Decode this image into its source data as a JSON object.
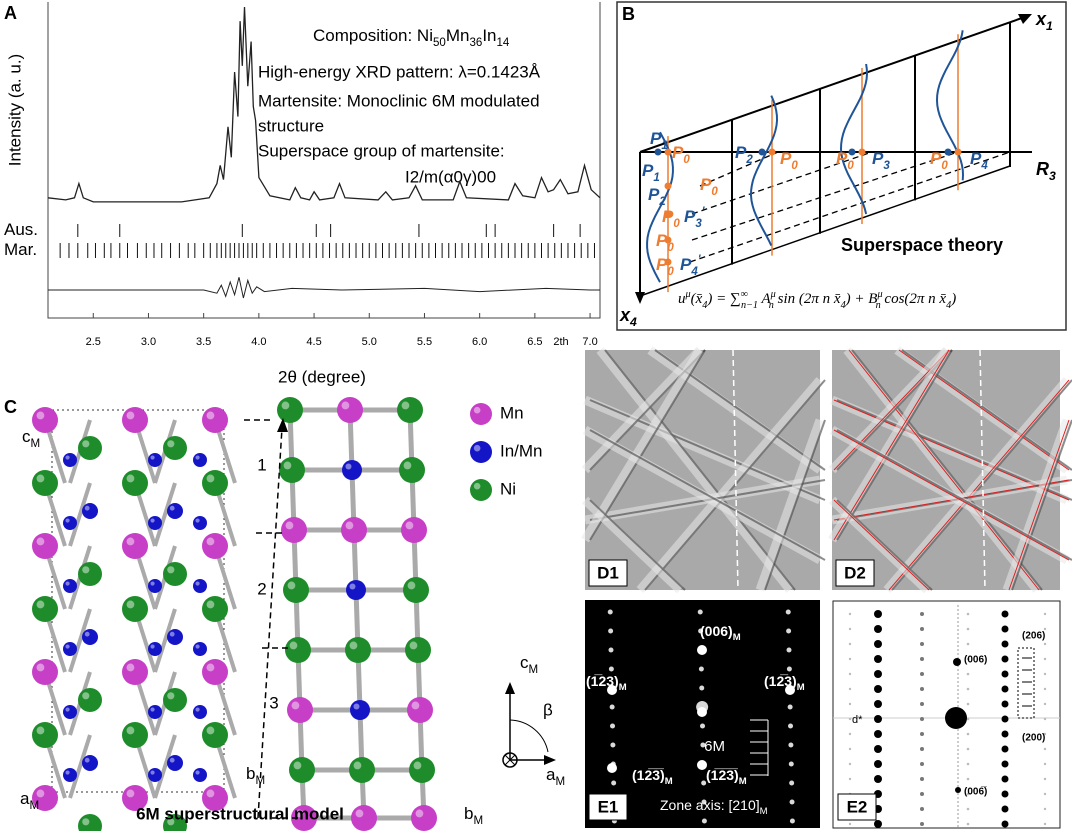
{
  "chart_data": {
    "type": "line",
    "panel_label": "A",
    "y_label": "Intensity (a. u.)",
    "x_label": "2θ (degree)",
    "x_unit_label": "2th",
    "composition": [
      "Composition:  Ni",
      "50",
      "Mn",
      "36",
      "In",
      "14"
    ],
    "annotations": [
      "High-energy XRD pattern: λ=0.1423Å",
      "Martensite: Monoclinic 6M modulated",
      "structure",
      "Superspace group of martensite:",
      "I2/m(α0γ)00"
    ],
    "xlim": [
      2.09,
      7.09
    ],
    "xticks": [
      2.5,
      {
        "value": 3,
        "label": "3.0"
      },
      3.5,
      {
        "value": 4,
        "label": "4.0"
      },
      4.5,
      {
        "value": 5,
        "label": "5.0"
      },
      5.5,
      {
        "value": 6,
        "label": "6.0"
      },
      6.5,
      {
        "value": 7,
        "label": "7.0"
      }
    ],
    "ylim": [
      0,
      100
    ],
    "x": [
      2.09,
      2.25,
      2.33,
      2.37,
      2.41,
      2.5,
      2.9,
      3.3,
      3.55,
      3.62,
      3.65,
      3.68,
      3.72,
      3.75,
      3.78,
      3.81,
      3.83,
      3.85,
      3.87,
      3.9,
      3.93,
      3.95,
      3.97,
      4.0,
      4.1,
      4.28,
      4.33,
      4.38,
      4.46,
      4.5,
      4.55,
      4.68,
      4.73,
      4.78,
      5.08,
      5.15,
      5.21,
      5.36,
      5.42,
      5.48,
      5.76,
      5.82,
      5.88,
      6.26,
      6.32,
      6.39,
      6.5,
      6.56,
      6.62,
      6.67,
      6.73,
      6.8,
      6.89,
      6.95,
      7.01,
      7.09
    ],
    "series": [
      {
        "color": "#222222",
        "values": [
          5,
          4,
          5,
          12,
          5,
          3,
          3,
          3,
          5,
          12,
          21,
          14,
          40,
          25,
          67,
          45,
          92,
          70,
          99,
          60,
          82,
          50,
          43,
          15,
          6,
          4,
          10,
          5,
          4,
          8,
          4,
          5,
          12,
          5,
          4,
          8,
          4,
          5,
          11,
          4,
          4,
          13,
          5,
          4,
          12,
          6,
          5,
          15,
          8,
          9,
          14,
          7,
          8,
          21,
          9,
          5
        ]
      }
    ],
    "reflections": [
      {
        "name": "Aus.",
        "positions": [
          2.36,
          2.74,
          3.85,
          4.52,
          4.65,
          5.45,
          6.06,
          6.14,
          6.67,
          6.91
        ]
      },
      {
        "name": "Mar.",
        "positions": [
          2.2,
          2.28,
          2.36,
          2.45,
          2.52,
          2.6,
          2.66,
          2.74,
          2.81,
          2.9,
          2.98,
          3.05,
          3.12,
          3.2,
          3.28,
          3.36,
          3.42,
          3.5,
          3.56,
          3.62,
          3.66,
          3.7,
          3.74,
          3.78,
          3.82,
          3.86,
          3.9,
          3.94,
          3.98,
          4.04,
          4.1,
          4.16,
          4.22,
          4.28,
          4.34,
          4.4,
          4.46,
          4.52,
          4.58,
          4.64,
          4.7,
          4.76,
          4.82,
          4.88,
          4.94,
          5.0,
          5.06,
          5.12,
          5.18,
          5.24,
          5.3,
          5.36,
          5.42,
          5.48,
          5.54,
          5.6,
          5.66,
          5.72,
          5.78,
          5.84,
          5.9,
          5.96,
          6.02,
          6.08,
          6.14,
          6.2,
          6.26,
          6.32,
          6.38,
          6.44,
          6.5,
          6.56,
          6.62,
          6.68,
          6.74,
          6.8,
          6.86,
          6.92,
          6.98,
          7.04
        ]
      }
    ],
    "difference": {
      "ylim": [
        -10,
        10
      ],
      "x": [
        2.09,
        3.5,
        3.62,
        3.66,
        3.7,
        3.74,
        3.78,
        3.82,
        3.86,
        3.9,
        3.94,
        3.98,
        4.05,
        4.3,
        4.75,
        5.5,
        6.0,
        6.6,
        7.0,
        7.09
      ],
      "values": [
        0,
        0,
        -2,
        3,
        -4,
        5,
        -3,
        8,
        -5,
        6,
        -2,
        2,
        -1,
        1,
        0,
        1,
        -1,
        1,
        0,
        0
      ]
    }
  },
  "panel_b": {
    "label": "B",
    "axis_x1": [
      "x",
      "1"
    ],
    "axis_r3": [
      "R",
      "3"
    ],
    "axis_x4": [
      "x",
      "4"
    ],
    "title": "Superspace theory",
    "points": [
      {
        "text": [
          "P",
          "1"
        ],
        "color": "#1f5597"
      },
      {
        "text": [
          "P",
          "0"
        ],
        "color": "#ed7d31"
      },
      {
        "text": [
          "P",
          "2"
        ],
        "color": "#1f5597"
      },
      {
        "text": [
          "P",
          "0"
        ],
        "color": "#ed7d31"
      },
      {
        "text": [
          "P",
          "0"
        ],
        "color": "#ed7d31"
      },
      {
        "text": [
          "P",
          "3"
        ],
        "color": "#1f5597"
      },
      {
        "text": [
          "P",
          "0"
        ],
        "color": "#ed7d31"
      },
      {
        "text": [
          "P",
          "4"
        ],
        "color": "#1f5597"
      },
      {
        "text": [
          "P",
          "1"
        ],
        "color": "#1f5597"
      },
      {
        "text": [
          "P",
          "2"
        ],
        "color": "#1f5597"
      },
      {
        "text": [
          "P",
          "0"
        ],
        "color": "#ed7d31"
      },
      {
        "text": [
          "P",
          "0"
        ],
        "color": "#ed7d31"
      },
      {
        "text": [
          "P",
          "3",
          "'"
        ],
        "color": "#1f5597"
      },
      {
        "text": [
          "P",
          "0"
        ],
        "color": "#ed7d31"
      },
      {
        "text": [
          "P",
          "0"
        ],
        "color": "#ed7d31"
      },
      {
        "text": [
          "P",
          "4",
          "'"
        ],
        "color": "#1f5597"
      }
    ],
    "formula": [
      "u",
      "μ",
      "(x̄",
      "4",
      ") = ∑",
      "∞",
      "n−1",
      " A",
      "μ",
      "n",
      " sin (2π n x̄",
      "4",
      ") + B",
      "μ",
      "n",
      " cos(2π n x̄",
      "4",
      ")"
    ]
  },
  "panel_c": {
    "label": "C",
    "c_axis": [
      "c",
      "M"
    ],
    "a_axis": [
      "a",
      "M"
    ],
    "b_axis_left": [
      "b",
      "M"
    ],
    "b_axis_right": [
      "b",
      "M"
    ],
    "layers": [
      "1",
      "2",
      "3"
    ],
    "legend": [
      {
        "name": "Mn",
        "color": "#c63fc6"
      },
      {
        "name": "In/Mn",
        "color": "#1515c8"
      },
      {
        "name": "Ni",
        "color": "#1e8c2a"
      }
    ],
    "axes_symbol": {
      "c": [
        "c",
        "M"
      ],
      "beta": "β",
      "a": [
        "a",
        "M"
      ]
    },
    "caption": "6M superstructural model"
  },
  "panel_d": {
    "d1": "D1",
    "d2": "D2"
  },
  "panel_e": {
    "e1": {
      "label": "E1",
      "reflections": [
        [
          "(006)",
          "M"
        ],
        [
          "(1̅23)",
          "M"
        ],
        [
          "(12̅3)",
          "M"
        ],
        [
          "(12̅3̅)",
          "M"
        ],
        [
          "(1̅2̅3̅)",
          "M"
        ]
      ],
      "modulation": "6M",
      "zone_axis": [
        "Zone axis: [210]",
        "M"
      ]
    },
    "e2": {
      "label": "E2",
      "reflections": [
        "(006)",
        "(206)",
        "(200)",
        "(006̅)"
      ],
      "d_star": "d*"
    }
  }
}
